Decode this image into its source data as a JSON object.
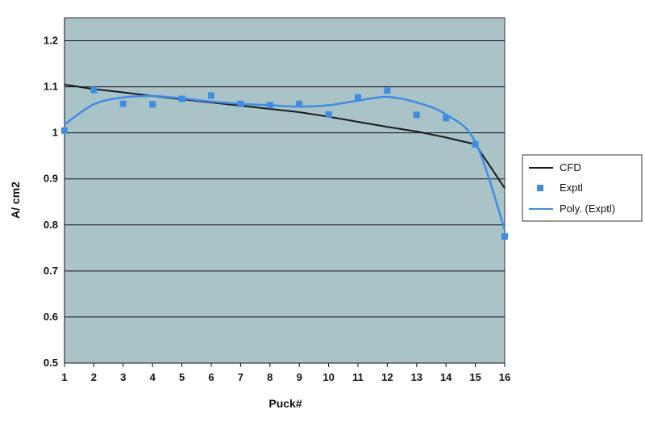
{
  "chart_data": {
    "type": "line",
    "xlabel": "Puck#",
    "ylabel": "A/ cm2",
    "x": [
      1,
      2,
      3,
      4,
      5,
      6,
      7,
      8,
      9,
      10,
      11,
      12,
      13,
      14,
      15,
      16
    ],
    "x_ticks": [
      "1",
      "2",
      "3",
      "4",
      "5",
      "6",
      "7",
      "8",
      "9",
      "10",
      "11",
      "12",
      "13",
      "14",
      "15",
      "16"
    ],
    "y_ticks": [
      "0.5",
      "0.6",
      "0.7",
      "0.8",
      "0.9",
      "1",
      "1.1",
      "1.2"
    ],
    "xlim": [
      1,
      16
    ],
    "ylim": [
      0.5,
      1.25
    ],
    "grid": true,
    "legend_position": "right",
    "series": [
      {
        "name": "CFD",
        "kind": "line",
        "color": "#1a1a1a",
        "values": [
          1.105,
          1.095,
          1.088,
          1.08,
          1.073,
          1.066,
          1.059,
          1.052,
          1.045,
          1.035,
          1.024,
          1.013,
          1.003,
          0.99,
          0.975,
          0.88
        ]
      },
      {
        "name": "Exptl",
        "kind": "scatter",
        "color": "#3d8de8",
        "values": [
          1.005,
          1.093,
          1.063,
          1.062,
          1.074,
          1.081,
          1.063,
          1.06,
          1.063,
          1.04,
          1.077,
          1.092,
          1.039,
          1.032,
          0.975,
          0.775
        ]
      },
      {
        "name": "Poly. (Exptl)",
        "kind": "line",
        "color": "#3d8de8",
        "values": [
          1.018,
          1.062,
          1.077,
          1.08,
          1.075,
          1.068,
          1.063,
          1.06,
          1.057,
          1.06,
          1.07,
          1.078,
          1.066,
          1.04,
          0.98,
          0.79
        ]
      }
    ],
    "colors": {
      "plot_background": "#a9c3c6",
      "grid": "#111111"
    }
  }
}
